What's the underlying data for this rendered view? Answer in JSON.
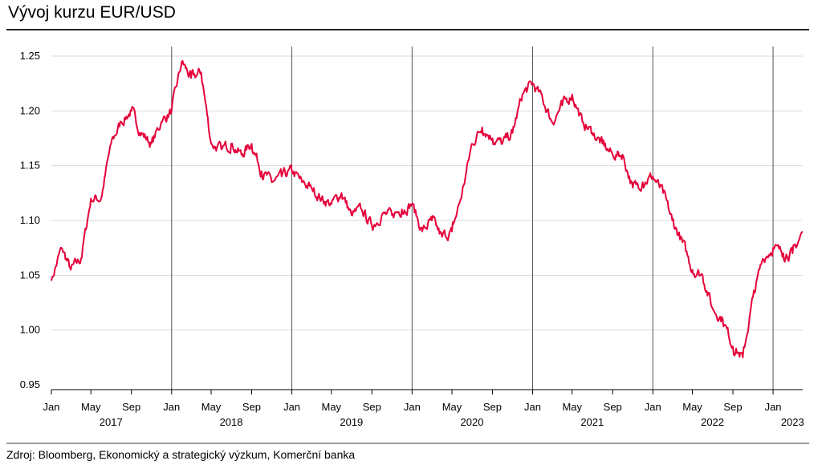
{
  "title": "Vývoj kurzu EUR/USD",
  "source": "Zdroj: Bloomberg, Ekonomický a strategický výzkum, Komerční banka",
  "colors": {
    "line": "#e4003a",
    "grid": "#d9d9d9",
    "year_line": "#555555",
    "axis": "#000000"
  },
  "chart_data": {
    "type": "line",
    "title": "Vývoj kurzu EUR/USD",
    "xlabel": "",
    "ylabel": "",
    "ylim": [
      0.95,
      1.25
    ],
    "yticks": [
      0.95,
      1.0,
      1.05,
      1.1,
      1.15,
      1.2,
      1.25
    ],
    "ytick_labels": [
      "0.95",
      "1.00",
      "1.05",
      "1.10",
      "1.15",
      "1.20",
      "1.25"
    ],
    "x_start": "2017-01",
    "x_end": "2023-04",
    "month_ticks": [
      {
        "x": "2017-01",
        "label": "Jan"
      },
      {
        "x": "2017-05",
        "label": "May"
      },
      {
        "x": "2017-09",
        "label": "Sep"
      },
      {
        "x": "2018-01",
        "label": "Jan"
      },
      {
        "x": "2018-05",
        "label": "May"
      },
      {
        "x": "2018-09",
        "label": "Sep"
      },
      {
        "x": "2019-01",
        "label": "Jan"
      },
      {
        "x": "2019-05",
        "label": "May"
      },
      {
        "x": "2019-09",
        "label": "Sep"
      },
      {
        "x": "2020-01",
        "label": "Jan"
      },
      {
        "x": "2020-05",
        "label": "May"
      },
      {
        "x": "2020-09",
        "label": "Sep"
      },
      {
        "x": "2021-01",
        "label": "Jan"
      },
      {
        "x": "2021-05",
        "label": "May"
      },
      {
        "x": "2021-09",
        "label": "Sep"
      },
      {
        "x": "2022-01",
        "label": "Jan"
      },
      {
        "x": "2022-05",
        "label": "May"
      },
      {
        "x": "2022-09",
        "label": "Sep"
      },
      {
        "x": "2023-01",
        "label": "Jan"
      }
    ],
    "year_labels": [
      {
        "x": "2017-07",
        "label": "2017"
      },
      {
        "x": "2018-07",
        "label": "2018"
      },
      {
        "x": "2019-07",
        "label": "2019"
      },
      {
        "x": "2020-07",
        "label": "2020"
      },
      {
        "x": "2021-07",
        "label": "2021"
      },
      {
        "x": "2022-07",
        "label": "2022"
      },
      {
        "x": "2023-03",
        "label": "2023"
      }
    ],
    "year_lines": [
      "2018-01",
      "2019-01",
      "2020-01",
      "2021-01",
      "2022-01",
      "2023-01"
    ],
    "grid": true,
    "legend": "none",
    "series": [
      {
        "x": [
          "2017-01",
          "2017-02",
          "2017-03",
          "2017-04",
          "2017-05",
          "2017-06",
          "2017-07",
          "2017-08",
          "2017-09",
          "2017-10",
          "2017-11",
          "2017-12",
          "2018-01",
          "2018-02",
          "2018-03",
          "2018-04",
          "2018-05",
          "2018-06",
          "2018-07",
          "2018-08",
          "2018-09",
          "2018-10",
          "2018-11",
          "2018-12",
          "2019-01",
          "2019-02",
          "2019-03",
          "2019-04",
          "2019-05",
          "2019-06",
          "2019-07",
          "2019-08",
          "2019-09",
          "2019-10",
          "2019-11",
          "2019-12",
          "2020-01",
          "2020-02",
          "2020-03",
          "2020-04",
          "2020-05",
          "2020-06",
          "2020-07",
          "2020-08",
          "2020-09",
          "2020-10",
          "2020-11",
          "2020-12",
          "2021-01",
          "2021-02",
          "2021-03",
          "2021-04",
          "2021-05",
          "2021-06",
          "2021-07",
          "2021-08",
          "2021-09",
          "2021-10",
          "2021-11",
          "2021-12",
          "2022-01",
          "2022-02",
          "2022-03",
          "2022-04",
          "2022-05",
          "2022-06",
          "2022-07",
          "2022-08",
          "2022-09",
          "2022-10",
          "2022-11",
          "2022-12",
          "2023-01",
          "2023-02",
          "2023-03",
          "2023-04"
        ],
        "y": [
          1.045,
          1.075,
          1.055,
          1.065,
          1.12,
          1.12,
          1.17,
          1.19,
          1.2,
          1.18,
          1.17,
          1.19,
          1.2,
          1.245,
          1.23,
          1.235,
          1.17,
          1.165,
          1.17,
          1.16,
          1.17,
          1.145,
          1.135,
          1.14,
          1.145,
          1.135,
          1.13,
          1.12,
          1.115,
          1.125,
          1.105,
          1.11,
          1.095,
          1.105,
          1.105,
          1.11,
          1.115,
          1.09,
          1.1,
          1.085,
          1.09,
          1.125,
          1.17,
          1.185,
          1.175,
          1.17,
          1.18,
          1.215,
          1.225,
          1.21,
          1.19,
          1.205,
          1.215,
          1.19,
          1.18,
          1.17,
          1.16,
          1.16,
          1.13,
          1.135,
          1.14,
          1.125,
          1.1,
          1.08,
          1.055,
          1.05,
          1.02,
          1.01,
          0.985,
          0.975,
          1.03,
          1.065,
          1.075,
          1.07,
          1.07,
          1.09
        ]
      }
    ]
  }
}
